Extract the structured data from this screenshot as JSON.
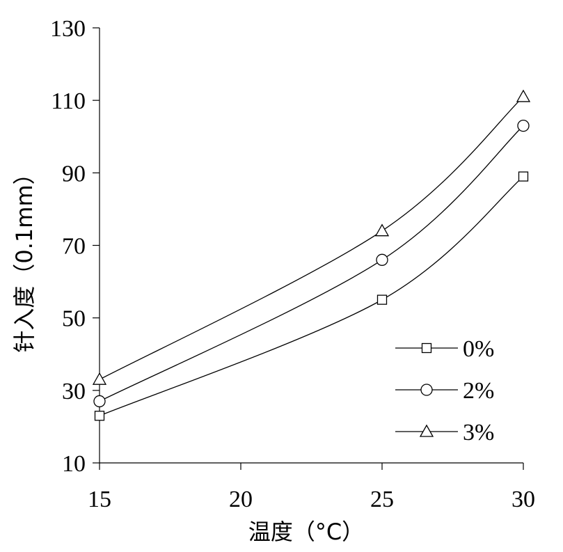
{
  "chart_data": {
    "type": "line",
    "xlabel": "温度（°C）",
    "ylabel": "针入度（0.1mm）",
    "x": [
      15,
      25,
      30
    ],
    "xlim": [
      15,
      30
    ],
    "ylim": [
      10,
      130
    ],
    "xticks": [
      "15",
      "20",
      "25",
      "30"
    ],
    "yticks": [
      "10",
      "30",
      "50",
      "70",
      "90",
      "110",
      "130"
    ],
    "grid": false,
    "legend_position": "bottom-right",
    "series": [
      {
        "name": "0%",
        "marker": "square",
        "values": [
          23,
          55,
          89
        ]
      },
      {
        "name": "2%",
        "marker": "circle",
        "values": [
          27,
          66,
          103
        ]
      },
      {
        "name": "3%",
        "marker": "triangle",
        "values": [
          33,
          74,
          111
        ]
      }
    ],
    "line_color": "#000000"
  }
}
